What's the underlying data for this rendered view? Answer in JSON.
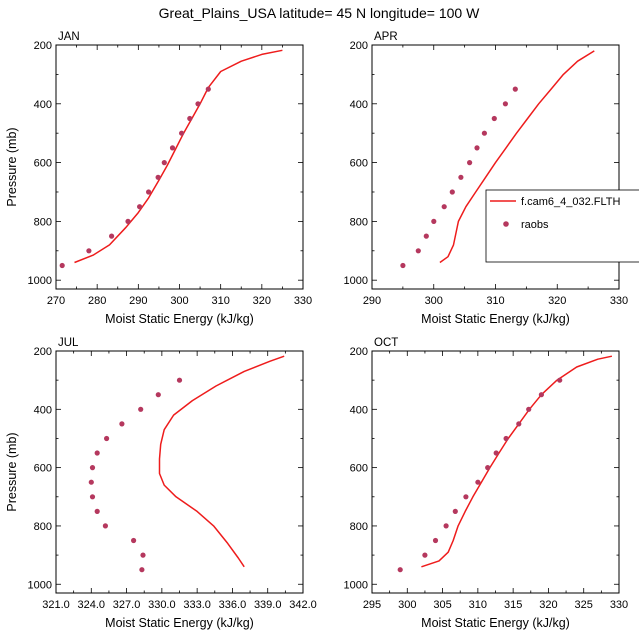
{
  "title": "Great_Plains_USA  latitude= 45 N longitude= 100 W",
  "legend": {
    "model_label": "f.cam6_4_032.FLTH",
    "obs_label": "raobs"
  },
  "colors": {
    "model_line": "#ee1c1c",
    "obs_marker": "#b5385e",
    "axis": "#000000"
  },
  "chart_data": [
    {
      "type": "line",
      "panel_title": "JAN",
      "xlabel": "Moist Static Energy (kJ/kg)",
      "ylabel": "Pressure (mb)",
      "xlim": [
        270,
        330
      ],
      "ylim": [
        1030,
        200
      ],
      "xticks": [
        270,
        280,
        290,
        300,
        310,
        320,
        330
      ],
      "xtick_labels": [
        "270",
        "280",
        "290",
        "300",
        "310",
        "320",
        "330"
      ],
      "yticks": [
        200,
        400,
        600,
        800,
        1000
      ],
      "ytick_labels": [
        "200",
        "400",
        "600",
        "800",
        "1000"
      ],
      "series": [
        {
          "name": "f.cam6_4_032.FLTH",
          "kind": "line",
          "points": [
            [
              274.5,
              940
            ],
            [
              279,
              915
            ],
            [
              283,
              880
            ],
            [
              287,
              820
            ],
            [
              290,
              770
            ],
            [
              292.5,
              720
            ],
            [
              295,
              660
            ],
            [
              297,
              610
            ],
            [
              299,
              555
            ],
            [
              301,
              500
            ],
            [
              303,
              450
            ],
            [
              305,
              400
            ],
            [
              307,
              345
            ],
            [
              310,
              290
            ],
            [
              315,
              255
            ],
            [
              320,
              232
            ],
            [
              325,
              218
            ]
          ]
        },
        {
          "name": "raobs",
          "kind": "scatter",
          "points": [
            [
              271.5,
              950
            ],
            [
              278,
              900
            ],
            [
              283.5,
              850
            ],
            [
              287.5,
              800
            ],
            [
              290.3,
              750
            ],
            [
              292.5,
              700
            ],
            [
              294.8,
              650
            ],
            [
              296.3,
              600
            ],
            [
              298.3,
              550
            ],
            [
              300.5,
              500
            ],
            [
              302.5,
              450
            ],
            [
              304.5,
              400
            ],
            [
              307,
              350
            ]
          ]
        }
      ]
    },
    {
      "type": "line",
      "panel_title": "APR",
      "xlabel": "Moist Static Energy (kJ/kg)",
      "ylabel": "",
      "xlim": [
        290,
        330
      ],
      "ylim": [
        1030,
        200
      ],
      "xticks": [
        290,
        300,
        310,
        320,
        330
      ],
      "xtick_labels": [
        "290",
        "300",
        "310",
        "320",
        "330"
      ],
      "yticks": [
        200,
        400,
        600,
        800,
        1000
      ],
      "ytick_labels": [
        "200",
        "400",
        "600",
        "800",
        "1000"
      ],
      "series": [
        {
          "name": "f.cam6_4_032.FLTH",
          "kind": "line",
          "points": [
            [
              301,
              940
            ],
            [
              302.3,
              920
            ],
            [
              303.2,
              880
            ],
            [
              304,
              800
            ],
            [
              305.2,
              750
            ],
            [
              306.8,
              700
            ],
            [
              308.4,
              650
            ],
            [
              310,
              600
            ],
            [
              311.7,
              550
            ],
            [
              313.4,
              500
            ],
            [
              315.2,
              450
            ],
            [
              317,
              400
            ],
            [
              319,
              350
            ],
            [
              321,
              300
            ],
            [
              323.3,
              255
            ],
            [
              326,
              220
            ]
          ]
        },
        {
          "name": "raobs",
          "kind": "scatter",
          "points": [
            [
              295,
              950
            ],
            [
              297.5,
              900
            ],
            [
              298.8,
              850
            ],
            [
              300,
              800
            ],
            [
              301.7,
              750
            ],
            [
              303,
              700
            ],
            [
              304.4,
              650
            ],
            [
              305.8,
              600
            ],
            [
              307,
              550
            ],
            [
              308.2,
              500
            ],
            [
              309.8,
              450
            ],
            [
              311.6,
              400
            ],
            [
              313.2,
              350
            ]
          ]
        }
      ]
    },
    {
      "type": "line",
      "panel_title": "JUL",
      "xlabel": "Moist Static Energy (kJ/kg)",
      "ylabel": "Pressure (mb)",
      "xlim": [
        321,
        342
      ],
      "ylim": [
        1030,
        200
      ],
      "xticks": [
        321,
        324,
        327,
        330,
        333,
        336,
        339,
        342
      ],
      "xtick_labels": [
        "321.0",
        "324.0",
        "327.0",
        "330.0",
        "333.0",
        "336.0",
        "339.0",
        "342.0"
      ],
      "yticks": [
        200,
        400,
        600,
        800,
        1000
      ],
      "ytick_labels": [
        "200",
        "400",
        "600",
        "800",
        "1000"
      ],
      "series": [
        {
          "name": "f.cam6_4_032.FLTH",
          "kind": "line",
          "points": [
            [
              337,
              940
            ],
            [
              336.5,
              910
            ],
            [
              335.6,
              860
            ],
            [
              334.4,
              800
            ],
            [
              333,
              750
            ],
            [
              331.2,
              700
            ],
            [
              330.2,
              660
            ],
            [
              329.8,
              620
            ],
            [
              329.8,
              570
            ],
            [
              329.9,
              520
            ],
            [
              330.2,
              470
            ],
            [
              331,
              420
            ],
            [
              332.6,
              370
            ],
            [
              334.6,
              320
            ],
            [
              337,
              270
            ],
            [
              339.2,
              235
            ],
            [
              340.4,
              218
            ]
          ]
        },
        {
          "name": "raobs",
          "kind": "scatter",
          "points": [
            [
              328.3,
              950
            ],
            [
              328.4,
              900
            ],
            [
              327.6,
              850
            ],
            [
              325.2,
              800
            ],
            [
              324.5,
              750
            ],
            [
              324.1,
              700
            ],
            [
              324,
              650
            ],
            [
              324.1,
              600
            ],
            [
              324.5,
              550
            ],
            [
              325.3,
              500
            ],
            [
              326.6,
              450
            ],
            [
              328.2,
              400
            ],
            [
              329.7,
              350
            ],
            [
              331.5,
              300
            ]
          ]
        }
      ]
    },
    {
      "type": "line",
      "panel_title": "OCT",
      "xlabel": "Moist Static Energy (kJ/kg)",
      "ylabel": "",
      "xlim": [
        295,
        330
      ],
      "ylim": [
        1030,
        200
      ],
      "xticks": [
        295,
        300,
        305,
        310,
        315,
        320,
        325,
        330
      ],
      "xtick_labels": [
        "295",
        "300",
        "305",
        "310",
        "315",
        "320",
        "325",
        "330"
      ],
      "yticks": [
        200,
        400,
        600,
        800,
        1000
      ],
      "ytick_labels": [
        "200",
        "400",
        "600",
        "800",
        "1000"
      ],
      "series": [
        {
          "name": "f.cam6_4_032.FLTH",
          "kind": "line",
          "points": [
            [
              302,
              940
            ],
            [
              304.5,
              920
            ],
            [
              305.8,
              890
            ],
            [
              306.5,
              850
            ],
            [
              307.2,
              800
            ],
            [
              308.2,
              750
            ],
            [
              309.3,
              700
            ],
            [
              310.5,
              650
            ],
            [
              311.7,
              600
            ],
            [
              313,
              550
            ],
            [
              314.3,
              500
            ],
            [
              315.8,
              450
            ],
            [
              317.3,
              400
            ],
            [
              319,
              350
            ],
            [
              321.2,
              300
            ],
            [
              324,
              255
            ],
            [
              327,
              228
            ],
            [
              329,
              218
            ]
          ]
        },
        {
          "name": "raobs",
          "kind": "scatter",
          "points": [
            [
              299,
              950
            ],
            [
              302.5,
              900
            ],
            [
              304,
              850
            ],
            [
              305.5,
              800
            ],
            [
              306.8,
              750
            ],
            [
              308.3,
              700
            ],
            [
              310,
              650
            ],
            [
              311.4,
              600
            ],
            [
              312.6,
              550
            ],
            [
              314,
              500
            ],
            [
              315.8,
              450
            ],
            [
              317.2,
              400
            ],
            [
              319,
              350
            ],
            [
              321.6,
              300
            ]
          ]
        }
      ]
    }
  ]
}
